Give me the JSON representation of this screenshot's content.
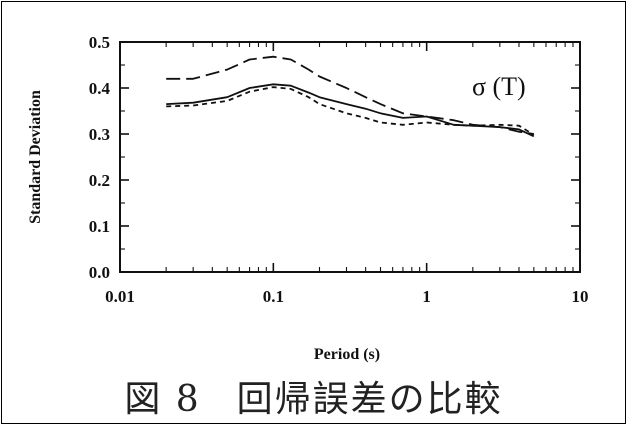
{
  "caption": {
    "figure_number": "図 8",
    "text": "回帰誤差の比較"
  },
  "chart_data": {
    "type": "line",
    "title": "",
    "xlabel": "Period (s)",
    "ylabel": "Standard Deviation",
    "xscale": "log",
    "xlim": [
      0.01,
      10
    ],
    "ylim": [
      0.0,
      0.5
    ],
    "x_ticks": [
      0.01,
      0.1,
      1,
      10
    ],
    "x_tick_labels": [
      "0.01",
      "0.1",
      "1",
      "10"
    ],
    "y_ticks": [
      0.0,
      0.1,
      0.2,
      0.3,
      0.4,
      0.5
    ],
    "y_tick_labels": [
      "0.0",
      "0.1",
      "0.2",
      "0.3",
      "0.4",
      "0.5"
    ],
    "annotation": "σ (T)",
    "grid": false,
    "series": [
      {
        "style": "long-dash",
        "x": [
          0.02,
          0.03,
          0.05,
          0.07,
          0.1,
          0.13,
          0.17,
          0.2,
          0.3,
          0.4,
          0.5,
          0.7,
          1.0,
          1.5,
          2.0,
          3.0,
          4.0,
          5.0
        ],
        "y": [
          0.42,
          0.42,
          0.44,
          0.462,
          0.468,
          0.462,
          0.44,
          0.425,
          0.4,
          0.38,
          0.365,
          0.345,
          0.338,
          0.33,
          0.32,
          0.315,
          0.305,
          0.3
        ]
      },
      {
        "style": "solid",
        "x": [
          0.02,
          0.03,
          0.05,
          0.07,
          0.1,
          0.13,
          0.17,
          0.2,
          0.3,
          0.4,
          0.5,
          0.7,
          1.0,
          1.5,
          2.0,
          3.0,
          4.0,
          5.0
        ],
        "y": [
          0.365,
          0.368,
          0.38,
          0.4,
          0.408,
          0.405,
          0.39,
          0.38,
          0.365,
          0.355,
          0.345,
          0.335,
          0.338,
          0.32,
          0.318,
          0.315,
          0.31,
          0.295
        ]
      },
      {
        "style": "short-dash",
        "x": [
          0.02,
          0.03,
          0.05,
          0.07,
          0.1,
          0.13,
          0.17,
          0.2,
          0.3,
          0.4,
          0.5,
          0.7,
          1.0,
          1.5,
          2.0,
          3.0,
          4.0,
          5.0
        ],
        "y": [
          0.36,
          0.362,
          0.372,
          0.392,
          0.402,
          0.398,
          0.38,
          0.365,
          0.345,
          0.335,
          0.325,
          0.32,
          0.325,
          0.32,
          0.318,
          0.32,
          0.318,
          0.298
        ]
      }
    ]
  }
}
